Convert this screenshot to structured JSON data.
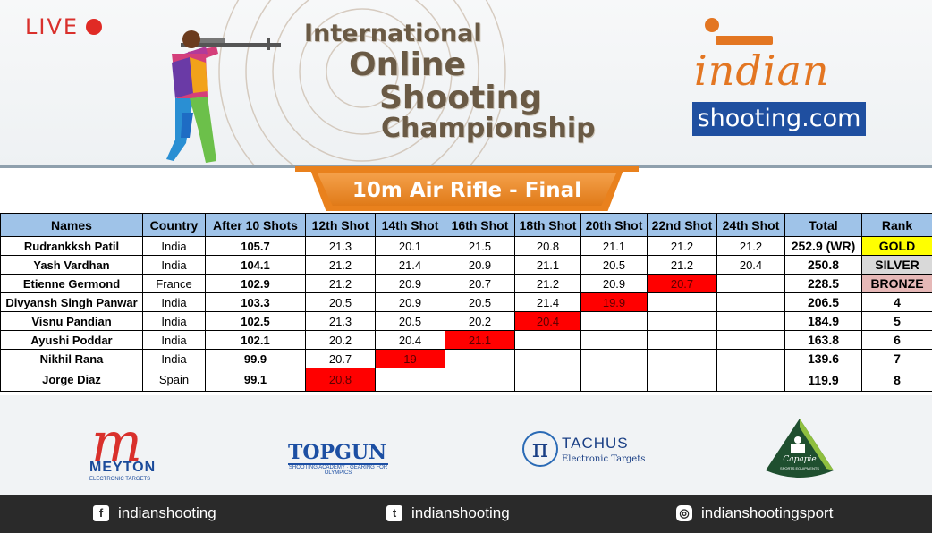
{
  "header": {
    "live_label": "LIVE",
    "title_line1": "International",
    "title_line2": "Online",
    "title_line3": "Shooting",
    "title_line4": "Championship",
    "logo_top": "ndian",
    "logo_bottom": "shooting.com",
    "accent_color": "#e9811d",
    "logo_box_color": "#1f4fa0"
  },
  "event": {
    "title": "10m Air Rifle - Final"
  },
  "table": {
    "columns": [
      "Names",
      "Country",
      "After 10 Shots",
      "12th Shot",
      "14th Shot",
      "16th Shot",
      "18th Shot",
      "20th Shot",
      "22nd Shot",
      "24th Shot",
      "Total",
      "Rank"
    ],
    "rows": [
      {
        "name": "Rudrankksh Patil",
        "country": "India",
        "after10": "105.7",
        "shots": [
          "21.3",
          "20.1",
          "21.5",
          "20.8",
          "21.1",
          "21.2",
          "21.2"
        ],
        "total": "252.9 (WR)",
        "rank": "GOLD"
      },
      {
        "name": "Yash Vardhan",
        "country": "India",
        "after10": "104.1",
        "shots": [
          "21.2",
          "21.4",
          "20.9",
          "21.1",
          "20.5",
          "21.2",
          "20.4"
        ],
        "total": "250.8",
        "rank": "SILVER"
      },
      {
        "name": "Etienne Germond",
        "country": "France",
        "after10": "102.9",
        "shots": [
          "21.2",
          "20.9",
          "20.7",
          "21.2",
          "20.9",
          "20.7",
          ""
        ],
        "total": "228.5",
        "rank": "BRONZE"
      },
      {
        "name": "Divyansh Singh Panwar",
        "country": "India",
        "after10": "103.3",
        "shots": [
          "20.5",
          "20.9",
          "20.5",
          "21.4",
          "19.9",
          "",
          ""
        ],
        "total": "206.5",
        "rank": "4"
      },
      {
        "name": "Visnu Pandian",
        "country": "India",
        "after10": "102.5",
        "shots": [
          "21.3",
          "20.5",
          "20.2",
          "20.4",
          "",
          "",
          ""
        ],
        "total": "184.9",
        "rank": "5"
      },
      {
        "name": "Ayushi Poddar",
        "country": "India",
        "after10": "102.1",
        "shots": [
          "20.2",
          "20.4",
          "21.1",
          "",
          "",
          "",
          ""
        ],
        "total": "163.8",
        "rank": "6"
      },
      {
        "name": "Nikhil Rana",
        "country": "India",
        "after10": "99.9",
        "shots": [
          "20.7",
          "19",
          "",
          "",
          "",
          "",
          ""
        ],
        "total": "139.6",
        "rank": "7"
      },
      {
        "name": "Jorge Diaz",
        "country": "Spain",
        "after10": "99.1",
        "shots": [
          "20.8",
          "",
          "",
          "",
          "",
          "",
          ""
        ],
        "total": "119.9",
        "rank": "8"
      }
    ],
    "elimination_color": "#ff0000",
    "header_color": "#9fc3e8",
    "gold_color": "#ffff00",
    "silver_color": "#d9d9d9",
    "bronze_color": "#e6b8b7"
  },
  "sponsors": {
    "meyton_mark": "m",
    "meyton_name": "MEYTON",
    "meyton_sub": "ELECTRONIC TARGETS",
    "topgun_name": "TOPGUN",
    "topgun_sub": "SHOOTING ACADEMY · GEARING FOR OLYMPICS",
    "tachus_mark": "π",
    "tachus_name": "TACHUS",
    "tachus_sub": "Electronic Targets",
    "capapie_name": "Capapie",
    "capapie_sub": "SPORTS EQUIPMENTS"
  },
  "footer": {
    "facebook": "indianshooting",
    "twitter": "indianshooting",
    "instagram": "indianshootingsport",
    "facebook_icon": "facebook-icon",
    "twitter_icon": "twitter-icon",
    "instagram_icon": "instagram-icon"
  }
}
